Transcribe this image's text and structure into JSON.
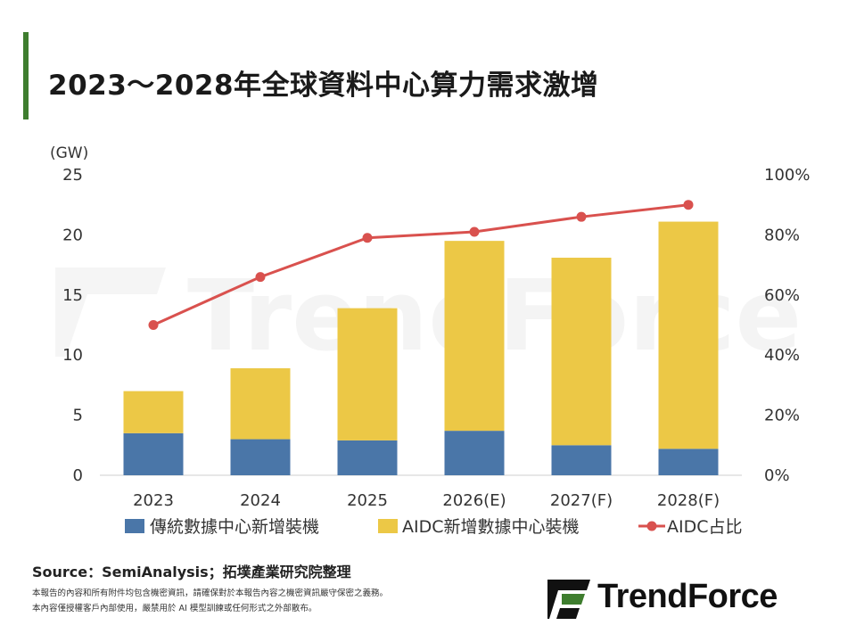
{
  "title": "2023～2028年全球資料中心算力需求激增",
  "source": "Source：SemiAnalysis；拓墣產業研究院整理",
  "disclaimer": [
    "本報告的內容和所有附件均包含機密資訊，請確保對於本報告內容之機密資訊嚴守保密之義務。",
    "本內容僅授權客戶內部使用，嚴禁用於 AI 模型訓練或任何形式之外部散布。"
  ],
  "brand": "TrendForce",
  "watermark": "TrendForce",
  "colors": {
    "traditional": "#4a76a8",
    "aidc": "#ecc846",
    "ratio": "#d9514e",
    "accent": "#3e7d2e"
  },
  "chart_data": {
    "type": "bar",
    "stacked": true,
    "categories": [
      "2023",
      "2024",
      "2025",
      "2026(E)",
      "2027(F)",
      "2028(F)"
    ],
    "series": [
      {
        "name": "傳統數據中心新增裝機",
        "values": [
          3.5,
          3.0,
          2.9,
          3.7,
          2.5,
          2.2
        ],
        "color": "#4a76a8"
      },
      {
        "name": "AIDC新增數據中心裝機",
        "values": [
          3.5,
          5.9,
          11.0,
          15.8,
          15.6,
          18.9
        ],
        "color": "#ecc846"
      }
    ],
    "line_series": {
      "name": "AIDC占比",
      "values": [
        50,
        66,
        79,
        81,
        86,
        90
      ],
      "axis": "right",
      "color": "#d9514e"
    },
    "y_left": {
      "unit": "(GW)",
      "ylim": [
        0,
        25
      ],
      "ticks": [
        "0",
        "5",
        "10",
        "15",
        "20",
        "25"
      ]
    },
    "y_right": {
      "ylim": [
        0,
        100
      ],
      "ticks": [
        "0%",
        "20%",
        "40%",
        "60%",
        "80%",
        "100%"
      ]
    },
    "grid": false,
    "legend_position": "bottom"
  }
}
